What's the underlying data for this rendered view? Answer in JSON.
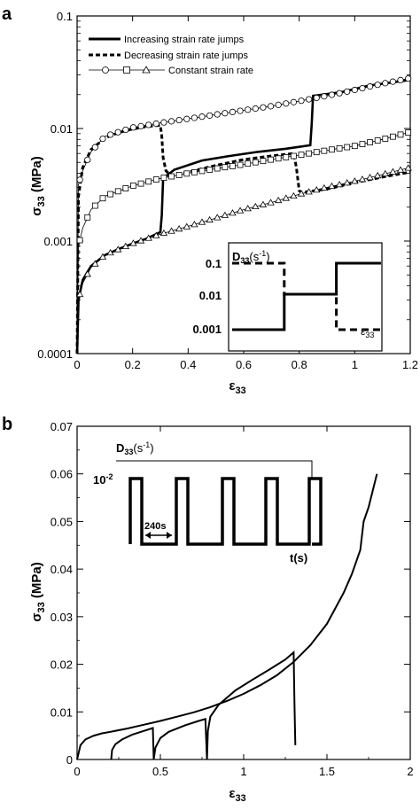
{
  "chart_data": [
    {
      "panel": "a",
      "type": "line",
      "yscale": "log",
      "ylabel": "σ33 (MPa)",
      "xlabel": "ε33",
      "xlim": [
        0,
        1.2
      ],
      "ylim": [
        0.0001,
        0.1
      ],
      "xticks": [
        "0",
        "0.2",
        "0.4",
        "0.6",
        "0.8",
        "1",
        "1.2"
      ],
      "yticks": [
        "0.0001",
        "0.001",
        "0.01",
        "0.1"
      ],
      "legend_position": "top-left",
      "series": [
        {
          "name": "Increasing strain rate jumps",
          "style": "solid-thick",
          "x": [
            0,
            0.005,
            0.02,
            0.05,
            0.1,
            0.15,
            0.2,
            0.25,
            0.3,
            0.305,
            0.31,
            0.35,
            0.45,
            0.55,
            0.65,
            0.75,
            0.84,
            0.845,
            0.85,
            0.95,
            1.05,
            1.15,
            1.2
          ],
          "y": [
            0.0001,
            0.0003,
            0.00045,
            0.0006,
            0.00075,
            0.00085,
            0.00095,
            0.00105,
            0.0012,
            0.0017,
            0.0036,
            0.0043,
            0.0052,
            0.0057,
            0.0062,
            0.0066,
            0.0071,
            0.011,
            0.0195,
            0.021,
            0.024,
            0.026,
            0.027
          ]
        },
        {
          "name": "Decreasing strain rate jumps",
          "style": "dashed-thick",
          "x": [
            0,
            0.005,
            0.02,
            0.05,
            0.1,
            0.15,
            0.2,
            0.25,
            0.3,
            0.305,
            0.31,
            0.32,
            0.34,
            0.4,
            0.5,
            0.6,
            0.7,
            0.78,
            0.79,
            0.8,
            0.81,
            0.9,
            1.0,
            1.1,
            1.2
          ],
          "y": [
            0.0001,
            0.0025,
            0.0045,
            0.0065,
            0.0082,
            0.0092,
            0.0099,
            0.0104,
            0.0107,
            0.0085,
            0.0055,
            0.0042,
            0.0038,
            0.0041,
            0.0047,
            0.0053,
            0.0057,
            0.006,
            0.0045,
            0.0028,
            0.0027,
            0.0029,
            0.0033,
            0.0037,
            0.0041
          ]
        },
        {
          "name": "Constant strain rate",
          "style": "markers",
          "subseries": [
            {
              "marker": "circle",
              "x": [
                0,
                0.005,
                0.02,
                0.05,
                0.1,
                0.2,
                0.3,
                0.4,
                0.5,
                0.6,
                0.7,
                0.8,
                0.9,
                1.0,
                1.1,
                1.2
              ],
              "y": [
                0.0001,
                0.0032,
                0.0042,
                0.0062,
                0.0085,
                0.0102,
                0.0112,
                0.0122,
                0.0133,
                0.0145,
                0.0158,
                0.0175,
                0.0195,
                0.022,
                0.025,
                0.028
              ]
            },
            {
              "marker": "square",
              "x": [
                0,
                0.005,
                0.02,
                0.05,
                0.1,
                0.2,
                0.3,
                0.4,
                0.5,
                0.6,
                0.7,
                0.8,
                0.9,
                1.0,
                1.1,
                1.2
              ],
              "y": [
                0.0001,
                0.0009,
                0.0013,
                0.0019,
                0.0025,
                0.0031,
                0.0036,
                0.004,
                0.0044,
                0.0048,
                0.0053,
                0.0058,
                0.0064,
                0.007,
                0.008,
                0.0093
              ]
            },
            {
              "marker": "triangle",
              "x": [
                0,
                0.005,
                0.02,
                0.05,
                0.1,
                0.2,
                0.3,
                0.4,
                0.5,
                0.6,
                0.7,
                0.8,
                0.9,
                1.0,
                1.1,
                1.2
              ],
              "y": [
                0.0001,
                0.0003,
                0.00042,
                0.00058,
                0.00075,
                0.00095,
                0.00115,
                0.00135,
                0.0016,
                0.0019,
                0.0022,
                0.0026,
                0.003,
                0.0034,
                0.0039,
                0.0045
              ]
            }
          ]
        }
      ],
      "inset": {
        "ylabel": "D33(s-1)",
        "xlabel": "ε33",
        "yticks": [
          "0.1",
          "0.01",
          "0.001"
        ],
        "solid_steps": [
          [
            0,
            0.001
          ],
          [
            0.35,
            0.001
          ],
          [
            0.35,
            0.01
          ],
          [
            0.7,
            0.01
          ],
          [
            0.7,
            0.1
          ],
          [
            1.0,
            0.1
          ]
        ],
        "dashed_steps": [
          [
            0,
            0.1
          ],
          [
            0.35,
            0.1
          ],
          [
            0.35,
            0.01
          ],
          [
            0.7,
            0.01
          ],
          [
            0.7,
            0.001
          ],
          [
            1.0,
            0.001
          ]
        ]
      }
    },
    {
      "panel": "b",
      "type": "line",
      "ylabel": "σ33 (MPa)",
      "xlabel": "ε33",
      "xlim": [
        0,
        2
      ],
      "ylim": [
        0,
        0.07
      ],
      "xticks": [
        "0",
        "0.5",
        "1",
        "1.5",
        "2"
      ],
      "yticks": [
        "0",
        "0.01",
        "0.02",
        "0.03",
        "0.04",
        "0.05",
        "0.06",
        "0.07"
      ],
      "series": [
        {
          "name": "",
          "style": "solid",
          "x": [
            0,
            0.02,
            0.05,
            0.1,
            0.15,
            0.2,
            0.3,
            0.4,
            0.5,
            0.6,
            0.7,
            0.8,
            0.9,
            1.0,
            1.1,
            1.2,
            1.3,
            1.4,
            1.5,
            1.6,
            1.65,
            1.7,
            1.72,
            1.75,
            1.8
          ],
          "y": [
            0,
            0.003,
            0.0042,
            0.005,
            0.0055,
            0.0058,
            0.0065,
            0.0073,
            0.0081,
            0.009,
            0.0099,
            0.011,
            0.0123,
            0.0138,
            0.0156,
            0.0177,
            0.0205,
            0.024,
            0.0285,
            0.035,
            0.039,
            0.044,
            0.05,
            0.053,
            0.06
          ]
        },
        {
          "name": "",
          "style": "solid",
          "x": [
            0.205,
            0.21,
            0.23,
            0.27,
            0.33,
            0.4,
            0.455,
            0.46,
            0.47,
            0.5,
            0.55,
            0.65,
            0.73,
            0.77,
            0.78,
            0.785,
            0.8,
            0.85,
            0.95,
            1.05,
            1.15,
            1.25,
            1.3,
            1.305,
            1.31
          ],
          "y": [
            0,
            0.002,
            0.0032,
            0.0042,
            0.0052,
            0.006,
            0.0066,
            0,
            0.0025,
            0.0045,
            0.0058,
            0.0072,
            0.0081,
            0.0085,
            0,
            0.006,
            0.009,
            0.0115,
            0.0145,
            0.0167,
            0.0188,
            0.021,
            0.0225,
            0.012,
            0.003
          ]
        }
      ],
      "inset": {
        "ylabel": "D33(s-1)",
        "ytick": "10-2",
        "xlabel": "t(s)",
        "annotation": "240s",
        "pulses": 5
      }
    }
  ],
  "labels": {
    "panel_a": "a",
    "panel_b": "b",
    "y_label_main": "σ",
    "y_label_sub": "33",
    "y_label_unit": " (MPa)",
    "x_label_main": "ε",
    "x_label_sub": "33",
    "legend_increasing": "Increasing strain rate jumps",
    "legend_decreasing": "Decreasing strain rate jumps",
    "legend_constant": "Constant strain rate",
    "inset_a_ylabel_main": "D",
    "inset_a_ylabel_sub": "33",
    "inset_a_ylabel_unit": "(s",
    "inset_a_ylabel_exp": "-1",
    "inset_a_ylabel_close": ")",
    "inset_a_tick_01": "0.1",
    "inset_a_tick_001": "0.01",
    "inset_a_tick_0001": "0.001",
    "inset_a_xlabel_main": "ε",
    "inset_a_xlabel_sub": "33",
    "inset_b_ylabel_main": "D",
    "inset_b_ylabel_sub": "33",
    "inset_b_ylabel_unit": "(s",
    "inset_b_ylabel_exp": "-1",
    "inset_b_ylabel_close": ")",
    "inset_b_tick_base": "10",
    "inset_b_tick_exp": "-2",
    "inset_b_xlabel": "t(s)",
    "inset_b_annotation": "240s"
  }
}
